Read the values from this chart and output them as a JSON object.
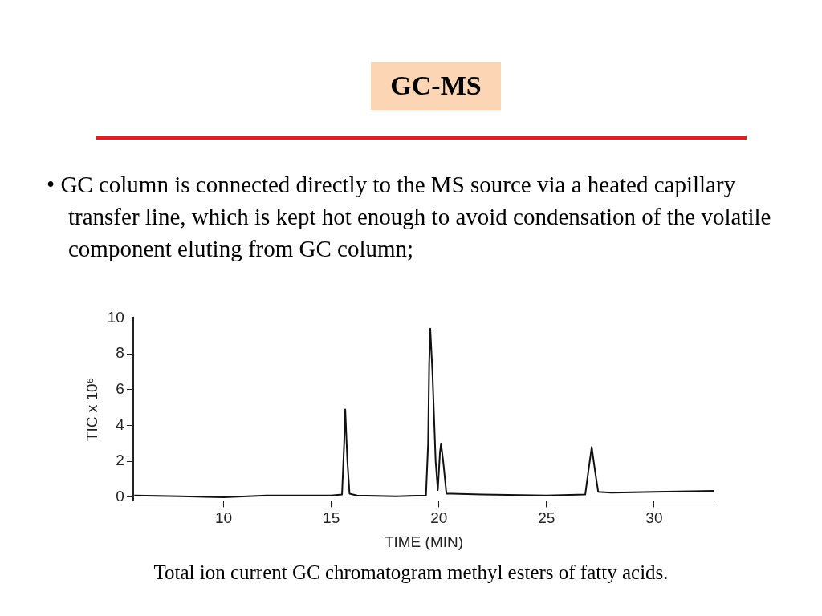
{
  "chart_data": {
    "type": "line",
    "title": "GC-MS",
    "annotations": [
      "• GC column is connected directly to the MS source via a heated capillary transfer line, which is kept hot enough to avoid condensation of the volatile component eluting from GC column;",
      "Total ion current GC chromatogram methyl esters of fatty acids."
    ],
    "xlabel": "TIME (MIN)",
    "ylabel": "TIC x 10⁶",
    "x": [
      5.85,
      8,
      10,
      12,
      15,
      15.5,
      15.6,
      15.65,
      15.75,
      15.85,
      16.2,
      18,
      19.4,
      19.5,
      19.55,
      19.6,
      19.7,
      19.85,
      19.95,
      20.05,
      20.1,
      20.2,
      20.35,
      20.6,
      22,
      25,
      26.8,
      26.95,
      27.1,
      27.25,
      27.4,
      28,
      30,
      32.8
    ],
    "series": [
      {
        "color": "#111111",
        "values": [
          0.1,
          0.05,
          0,
          0.1,
          0.1,
          0.15,
          3,
          4.9,
          2,
          0.2,
          0.1,
          0.05,
          0.1,
          3,
          7.5,
          9.4,
          7,
          2,
          0.4,
          2.5,
          3.0,
          2,
          0.2,
          0.2,
          0.15,
          0.1,
          0.15,
          1.5,
          2.8,
          1.5,
          0.3,
          0.25,
          0.3,
          0.35
        ]
      }
    ],
    "xlim": [
      5.8,
      32.8
    ],
    "xticks": [
      10,
      15,
      20,
      25,
      30
    ],
    "ylim": [
      -0.2,
      10
    ],
    "yticks": [
      0,
      2,
      4,
      6,
      8,
      10
    ],
    "grid": false,
    "legend": false,
    "marker": "none",
    "line_style": "solid"
  }
}
